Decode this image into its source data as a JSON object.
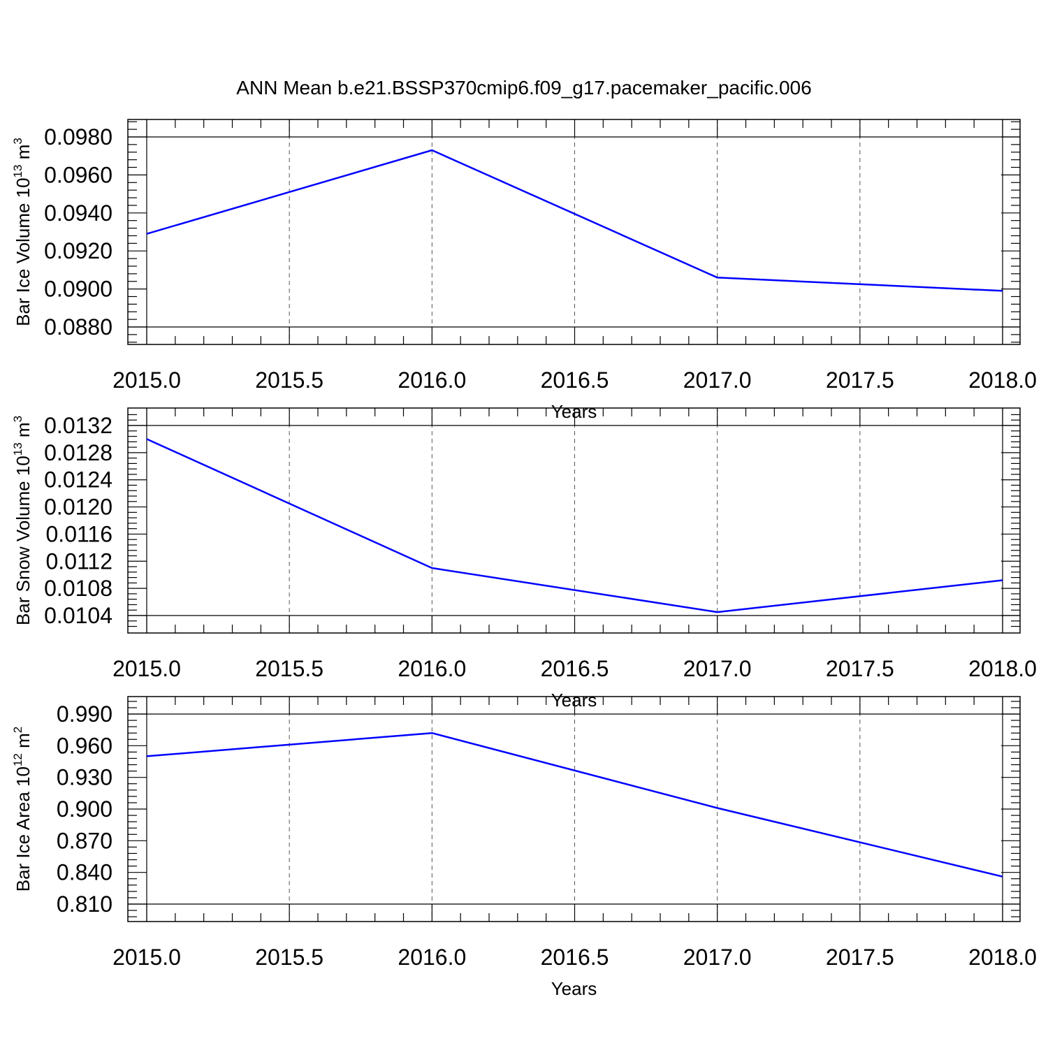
{
  "title": "ANN Mean b.e21.BSSP370cmip6.f09_g17.pacemaker_pacific.006",
  "colors": {
    "series": "#0000ff",
    "grid": "#555555",
    "frame": "#000000"
  },
  "chart_data": [
    {
      "type": "line",
      "xlabel": "Years",
      "ylabel": {
        "text": "Bar Ice Volume 10",
        "exp": "13",
        "unit": " m",
        "unit_exp": "3"
      },
      "xlim": [
        2015.0,
        2018.0
      ],
      "ylim": [
        0.088,
        0.098
      ],
      "xticks": [
        "2015.0",
        "2015.5",
        "2016.0",
        "2016.5",
        "2017.0",
        "2017.5",
        "2018.0"
      ],
      "yticks": [
        "0.0880",
        "0.0900",
        "0.0920",
        "0.0940",
        "0.0960",
        "0.0980"
      ],
      "x": [
        2015,
        2016,
        2017,
        2018
      ],
      "y": [
        0.0929,
        0.0973,
        0.0906,
        0.0899
      ],
      "grid": "vertical dashed"
    },
    {
      "type": "line",
      "xlabel": "Years",
      "ylabel": {
        "text": "Bar Snow Volume 10",
        "exp": "13",
        "unit": " m",
        "unit_exp": "3"
      },
      "xlim": [
        2015.0,
        2018.0
      ],
      "ylim": [
        0.0104,
        0.0132
      ],
      "xticks": [
        "2015.0",
        "2015.5",
        "2016.0",
        "2016.5",
        "2017.0",
        "2017.5",
        "2018.0"
      ],
      "yticks": [
        "0.0104",
        "0.0108",
        "0.0112",
        "0.0116",
        "0.0120",
        "0.0124",
        "0.0128",
        "0.0132"
      ],
      "x": [
        2015,
        2016,
        2017,
        2018
      ],
      "y": [
        0.013,
        0.0111,
        0.01045,
        0.01092
      ],
      "grid": "vertical dashed"
    },
    {
      "type": "line",
      "xlabel": "Years",
      "ylabel": {
        "text": "Bar Ice Area 10",
        "exp": "12",
        "unit": " m",
        "unit_exp": "2"
      },
      "xlim": [
        2015.0,
        2018.0
      ],
      "ylim": [
        0.81,
        0.99
      ],
      "xticks": [
        "2015.0",
        "2015.5",
        "2016.0",
        "2016.5",
        "2017.0",
        "2017.5",
        "2018.0"
      ],
      "yticks": [
        "0.810",
        "0.840",
        "0.870",
        "0.900",
        "0.930",
        "0.960",
        "0.990"
      ],
      "x": [
        2015,
        2016,
        2017,
        2018
      ],
      "y": [
        0.95,
        0.972,
        0.901,
        0.836
      ],
      "grid": "vertical dashed"
    }
  ]
}
